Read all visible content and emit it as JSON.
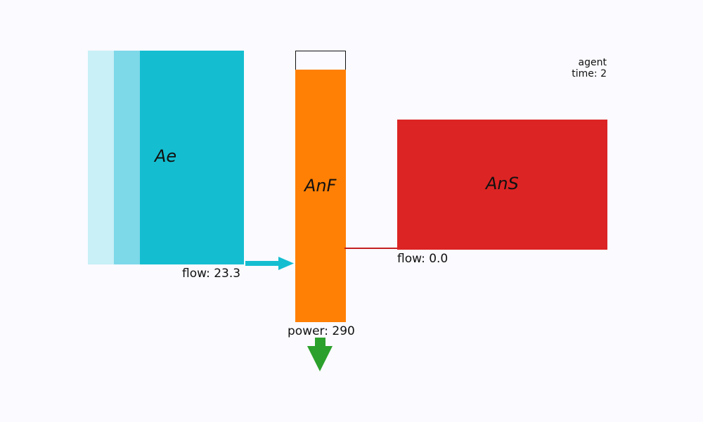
{
  "blocks": {
    "ae": {
      "label": "Ae",
      "color": "#14bed0"
    },
    "anf": {
      "label": "AnF",
      "color": "#ff8005"
    },
    "ans": {
      "label": "AnS",
      "color": "#dc2424"
    }
  },
  "flows": {
    "ae_to_anf": "flow: 23.3",
    "ans_to_anf": "flow: 0.0"
  },
  "power": "power: 290",
  "status": {
    "agent": "agent",
    "time": "time: 2"
  },
  "colors": {
    "background": "#fafaff",
    "flow_arrow": "#14bed0",
    "power_arrow": "#2ca02c"
  }
}
